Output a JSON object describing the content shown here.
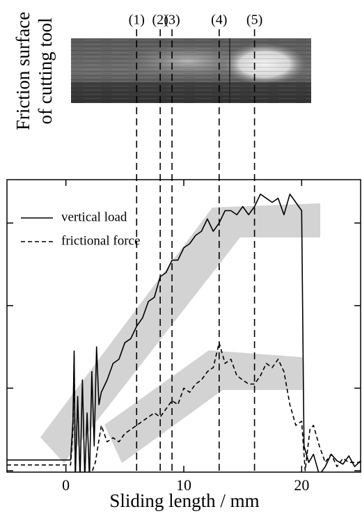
{
  "chart_data": {
    "type": "line",
    "image_label": [
      "Friction surface",
      "of cutting tool"
    ],
    "xlabel": "Sliding length / mm",
    "xlim": [
      -5,
      25
    ],
    "xticks": [
      0,
      10,
      20
    ],
    "ylim": [
      0,
      3.5
    ],
    "yticks": [
      0,
      1,
      2,
      3
    ],
    "legend": "upper left",
    "markers": [
      {
        "x": 6,
        "label": "(1)"
      },
      {
        "x": 8,
        "label": "(2)"
      },
      {
        "x": 9,
        "label": "(3)"
      },
      {
        "x": 13,
        "label": "(4)"
      },
      {
        "x": 16,
        "label": "(5)"
      }
    ],
    "series": [
      {
        "name": "vertical load",
        "color": "#000000",
        "dash": "solid",
        "x": [
          -5,
          0.4,
          0.6,
          0.7,
          0.8,
          1.0,
          1.2,
          1.4,
          1.6,
          1.8,
          2.0,
          2.2,
          2.4,
          2.6,
          2.8,
          3.0,
          3.5,
          4,
          4.5,
          5,
          5.5,
          6,
          6.5,
          7,
          7.5,
          8,
          8.5,
          9,
          9.5,
          10,
          10.5,
          11,
          11.5,
          12,
          12.5,
          13,
          13.5,
          14,
          14.5,
          15,
          15.5,
          16,
          16.5,
          17,
          17.5,
          18,
          18.5,
          19,
          19.5,
          20,
          20.2,
          20.6,
          21,
          21.5,
          22,
          22.5,
          23,
          23.5,
          24,
          24.5,
          25
        ],
        "values": [
          0.13,
          0.13,
          0.6,
          1.45,
          -0.1,
          0.9,
          -0.1,
          1.1,
          -0.1,
          0.7,
          -0.1,
          1.2,
          0.3,
          1.5,
          0.8,
          0.95,
          1.1,
          1.3,
          1.35,
          1.55,
          1.6,
          1.75,
          1.85,
          2.05,
          2.1,
          2.35,
          2.4,
          2.55,
          2.55,
          2.7,
          2.75,
          2.85,
          2.9,
          3.05,
          2.9,
          3.0,
          3.15,
          3.15,
          3.1,
          3.2,
          3.1,
          3.2,
          3.35,
          3.3,
          3.25,
          3.3,
          3.1,
          3.35,
          3.25,
          3.15,
          0.3,
          0.1,
          0.2,
          -0.05,
          0.05,
          0.2,
          0.12,
          0.08,
          0.18,
          0.05,
          0.12
        ]
      },
      {
        "name": "frictional force",
        "color": "#000000",
        "dash": "dashed",
        "x": [
          -5,
          0.4,
          0.6,
          0.7,
          0.8,
          1.2,
          1.6,
          2.0,
          2.5,
          3,
          3.5,
          4,
          4.5,
          5,
          5.5,
          6,
          6.5,
          7,
          7.5,
          8,
          8.5,
          9,
          9.5,
          10,
          10.5,
          11,
          11.5,
          12,
          12.5,
          13,
          13.5,
          14,
          14.5,
          15,
          15.5,
          16,
          16.5,
          17,
          17.5,
          18,
          18.5,
          19,
          19.5,
          20,
          20.3,
          20.7,
          21,
          21.5,
          22,
          22.5,
          23,
          23.5,
          24,
          25
        ],
        "values": [
          0.07,
          0.07,
          0.5,
          1.4,
          -0.1,
          -0.1,
          -0.1,
          -0.1,
          0.1,
          0.55,
          0.35,
          0.4,
          0.35,
          0.45,
          0.5,
          0.55,
          0.6,
          0.65,
          0.7,
          0.65,
          0.75,
          0.85,
          0.8,
          1.0,
          0.95,
          1.05,
          1.1,
          1.2,
          1.25,
          1.55,
          1.3,
          1.35,
          1.15,
          1.1,
          1.05,
          1.05,
          1.15,
          1.3,
          1.25,
          1.35,
          1.2,
          0.8,
          0.55,
          0.6,
          0.0,
          0.5,
          0.55,
          0.3,
          0.1,
          0.2,
          0.05,
          0.15,
          0.1,
          0.1
        ]
      }
    ]
  }
}
